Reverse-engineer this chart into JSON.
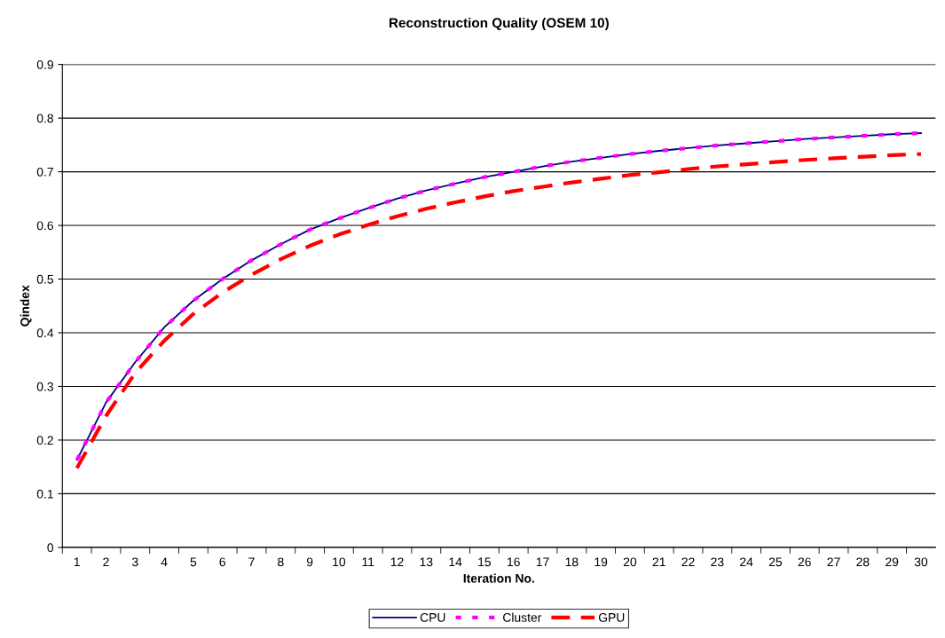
{
  "chart_data": {
    "type": "line",
    "title": "Reconstruction Quality (OSEM 10)",
    "xlabel": "Iteration No.",
    "ylabel": "Qindex",
    "categories": [
      "1",
      "2",
      "3",
      "4",
      "5",
      "6",
      "7",
      "8",
      "9",
      "10",
      "11",
      "12",
      "13",
      "14",
      "15",
      "16",
      "17",
      "18",
      "19",
      "20",
      "21",
      "22",
      "23",
      "24",
      "25",
      "26",
      "27",
      "28",
      "29",
      "30"
    ],
    "series": [
      {
        "name": "CPU",
        "color": "#000080",
        "line_style": "solid",
        "values": [
          0.163,
          0.27,
          0.345,
          0.41,
          0.46,
          0.5,
          0.535,
          0.565,
          0.592,
          0.613,
          0.632,
          0.65,
          0.665,
          0.678,
          0.69,
          0.7,
          0.71,
          0.719,
          0.726,
          0.733,
          0.739,
          0.744,
          0.749,
          0.753,
          0.757,
          0.761,
          0.764,
          0.767,
          0.77,
          0.772
        ]
      },
      {
        "name": "Cluster",
        "color": "#ff00ff",
        "line_style": "dotted",
        "values": [
          0.163,
          0.27,
          0.345,
          0.41,
          0.46,
          0.5,
          0.535,
          0.565,
          0.592,
          0.613,
          0.632,
          0.65,
          0.665,
          0.678,
          0.69,
          0.7,
          0.71,
          0.719,
          0.726,
          0.733,
          0.739,
          0.744,
          0.749,
          0.753,
          0.757,
          0.761,
          0.764,
          0.767,
          0.77,
          0.772
        ]
      },
      {
        "name": "GPU",
        "color": "#ff0000",
        "line_style": "dashed",
        "values": [
          0.148,
          0.245,
          0.325,
          0.385,
          0.435,
          0.475,
          0.508,
          0.537,
          0.562,
          0.583,
          0.601,
          0.617,
          0.631,
          0.643,
          0.654,
          0.664,
          0.672,
          0.68,
          0.687,
          0.694,
          0.699,
          0.705,
          0.71,
          0.714,
          0.718,
          0.722,
          0.725,
          0.728,
          0.731,
          0.733
        ]
      }
    ],
    "ylim": [
      0,
      0.9
    ],
    "yticks": [
      0,
      0.1,
      0.2,
      0.3,
      0.4,
      0.5,
      0.6,
      0.7,
      0.8,
      0.9
    ],
    "grid": "y",
    "legend": "bottom",
    "marker": "none"
  }
}
